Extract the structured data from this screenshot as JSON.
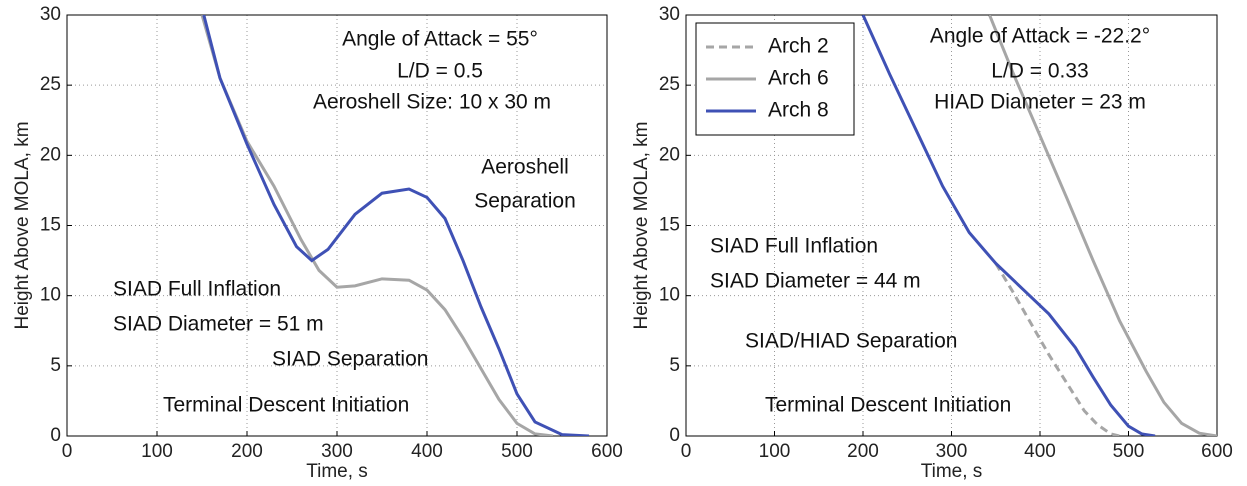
{
  "chart_data": [
    {
      "type": "line",
      "xlabel": "Time, s",
      "ylabel": "Height Above MOLA, km",
      "xlim": [
        0,
        600
      ],
      "ylim": [
        0,
        30
      ],
      "xticks": [
        0,
        100,
        200,
        300,
        400,
        500,
        600
      ],
      "yticks": [
        0,
        5,
        10,
        15,
        20,
        25,
        30
      ],
      "grid": true,
      "annotations": [
        "Angle of Attack = 55°",
        "L/D = 0.5",
        "Aeroshell Size: 10 x 30 m",
        "Aeroshell",
        "Separation",
        "SIAD Full Inflation",
        "SIAD Diameter = 51 m",
        "SIAD Separation",
        "Terminal Descent Initiation"
      ],
      "series": [
        {
          "color": "#a6a6a6",
          "linestyle": "solid",
          "x": [
            150,
            170,
            200,
            230,
            260,
            280,
            300,
            320,
            350,
            380,
            400,
            420,
            440,
            460,
            480,
            500,
            520,
            540
          ],
          "values": [
            30,
            25.5,
            21,
            17.8,
            14,
            11.8,
            10.6,
            10.7,
            11.2,
            11.1,
            10.4,
            9,
            7,
            4.8,
            2.6,
            0.9,
            0.15,
            0
          ]
        },
        {
          "color": "#3f51b5",
          "linestyle": "solid",
          "x": [
            152,
            170,
            200,
            230,
            255,
            272,
            290,
            320,
            350,
            380,
            400,
            420,
            440,
            460,
            480,
            500,
            520,
            550,
            580
          ],
          "values": [
            30,
            25.5,
            20.8,
            16.5,
            13.5,
            12.5,
            13.3,
            15.8,
            17.3,
            17.6,
            17,
            15.5,
            12.5,
            9.2,
            6.2,
            3,
            1,
            0.1,
            0
          ]
        }
      ]
    },
    {
      "type": "line",
      "xlabel": "Time, s",
      "ylabel": "Height Above MOLA, km",
      "xlim": [
        0,
        600
      ],
      "ylim": [
        0,
        30
      ],
      "xticks": [
        0,
        100,
        200,
        300,
        400,
        500,
        600
      ],
      "yticks": [
        0,
        5,
        10,
        15,
        20,
        25,
        30
      ],
      "grid": true,
      "legend": "upper left",
      "annotations": [
        "Angle of Attack = -22.2°",
        "L/D = 0.33",
        "HIAD Diameter = 23 m",
        "SIAD Full Inflation",
        "SIAD Diameter = 44 m",
        "SIAD/HIAD Separation",
        "Terminal Descent Initiation"
      ],
      "series": [
        {
          "name": "Arch 2",
          "color": "#a6a6a6",
          "linestyle": "dashed",
          "x": [
            350,
            370,
            390,
            410,
            430,
            450,
            465,
            480,
            490
          ],
          "values": [
            12.3,
            10.2,
            8,
            5.8,
            3.8,
            1.8,
            0.8,
            0.15,
            0
          ]
        },
        {
          "name": "Arch 6",
          "color": "#a6a6a6",
          "linestyle": "solid",
          "x": [
            343,
            370,
            400,
            430,
            460,
            490,
            520,
            540,
            560,
            580,
            600
          ],
          "values": [
            30,
            25.8,
            21.4,
            17,
            12.5,
            8.2,
            4.6,
            2.4,
            0.9,
            0.2,
            0
          ]
        },
        {
          "name": "Arch 8",
          "color": "#3f51b5",
          "linestyle": "solid",
          "x": [
            200,
            230,
            260,
            290,
            320,
            350,
            380,
            410,
            440,
            460,
            480,
            500,
            515,
            530
          ],
          "values": [
            30,
            25.8,
            21.8,
            17.8,
            14.5,
            12.3,
            10.5,
            8.7,
            6.3,
            4.2,
            2.2,
            0.7,
            0.15,
            0
          ]
        }
      ]
    }
  ]
}
